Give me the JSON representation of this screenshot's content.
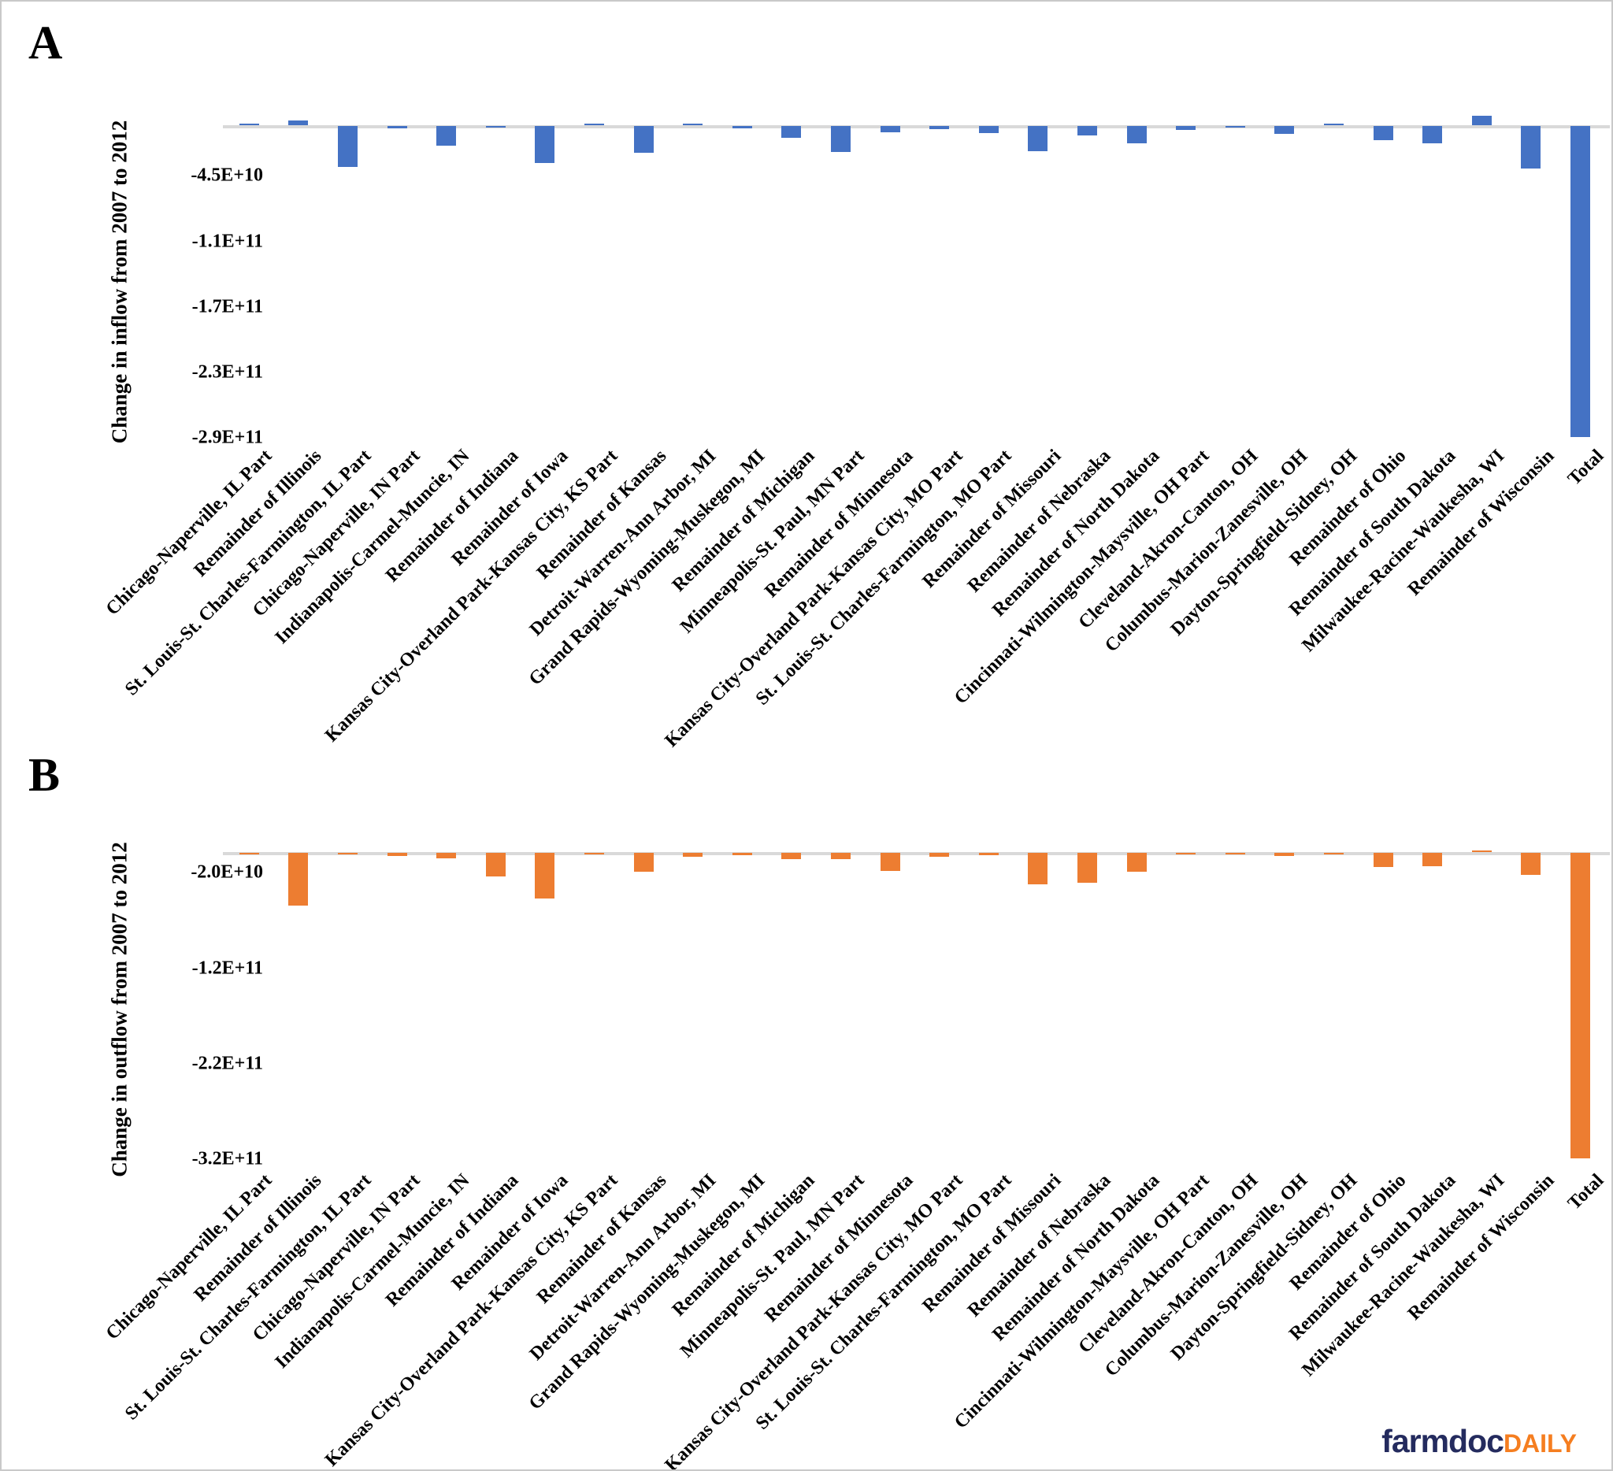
{
  "figure": {
    "background": "#ffffff",
    "border_color": "#c9c9c9"
  },
  "footer": {
    "brand": "farmdoc",
    "brand_suffix": "DAILY",
    "brand_color": "#242b5e",
    "brand_suffix_color": "#f57e20"
  },
  "colors": {
    "panel_a_bar": "#4472c4",
    "panel_b_bar": "#ed7d31",
    "axis_line": "#d9d9d9",
    "text": "#000000"
  },
  "chart_data": [
    {
      "panel_letter": "A",
      "type": "bar",
      "title": "",
      "xlabel": "",
      "ylabel": "Change in inflow from 2007 to 2012",
      "bar_color": "#4472c4",
      "grid": false,
      "legend": false,
      "ylim": [
        -300000000000.0,
        15000000000.0
      ],
      "yticks": [
        {
          "label": "-4.5E+10",
          "value": -45000000000.0
        },
        {
          "label": "-1.1E+11",
          "value": -105000000000.0
        },
        {
          "label": "-1.7E+11",
          "value": -165000000000.0
        },
        {
          "label": "-2.3E+11",
          "value": -225000000000.0
        },
        {
          "label": "-2.9E+11",
          "value": -285000000000.0
        }
      ],
      "categories": [
        "Chicago-Naperville, IL Part",
        "Remainder of Illinois",
        "St. Louis-St. Charles-Farmington, IL Part",
        "Chicago-Naperville, IN Part",
        "Indianapolis-Carmel-Muncie, IN",
        "Remainder of Indiana",
        "Remainder of Iowa",
        "Kansas City-Overland Park-Kansas City, KS Part",
        "Remainder of Kansas",
        "Detroit-Warren-Ann Arbor, MI",
        "Grand Rapids-Wyoming-Muskegon, MI",
        "Remainder of Michigan",
        "Minneapolis-St. Paul, MN Part",
        "Remainder of Minnesota",
        "Kansas City-Overland Park-Kansas City, MO Part",
        "St. Louis-St. Charles-Farmington, MO Part",
        "Remainder of Missouri",
        "Remainder of Nebraska",
        "Remainder of North Dakota",
        "Cincinnati-Wilmington-Maysville, OH Part",
        "Cleveland-Akron-Canton, OH",
        "Columbus-Marion-Zanesville, OH",
        "Dayton-Springfield-Sidney, OH",
        "Remainder of Ohio",
        "Remainder of South Dakota",
        "Milwaukee-Racine-Waukesha, WI",
        "Remainder of Wisconsin",
        "Total"
      ],
      "values": [
        1200000000.0,
        4200000000.0,
        -37600000000.0,
        -2000000000.0,
        -18000000000.0,
        -1000000000.0,
        -34000000000.0,
        500000000.0,
        -24600000000.0,
        1700000000.0,
        -2000000000.0,
        -11000000000.0,
        -24000000000.0,
        -5700000000.0,
        -2700000000.0,
        -6600000000.0,
        -23000000000.0,
        -8600000000.0,
        -16000000000.0,
        -3700000000.0,
        -1100000000.0,
        -7400000000.0,
        1500000000.0,
        -13300000000.0,
        -16000000000.0,
        8600000000.0,
        -38600000000.0,
        -285000000000.0
      ]
    },
    {
      "panel_letter": "B",
      "type": "bar",
      "title": "",
      "xlabel": "",
      "ylabel": "Change in outflow from 2007 to 2012",
      "bar_color": "#ed7d31",
      "grid": false,
      "legend": false,
      "ylim": [
        -335000000000.0,
        15000000000.0
      ],
      "yticks": [
        {
          "label": "-2.0E+10",
          "value": -20000000000.0
        },
        {
          "label": "-1.2E+11",
          "value": -120000000000.0
        },
        {
          "label": "-2.2E+11",
          "value": -220000000000.0
        },
        {
          "label": "-3.2E+11",
          "value": -320000000000.0
        }
      ],
      "categories": [
        "Chicago-Naperville, IL Part",
        "Remainder of Illinois",
        "St. Louis-St. Charles-Farmington, IL Part",
        "Chicago-Naperville, IN Part",
        "Indianapolis-Carmel-Muncie, IN",
        "Remainder of Indiana",
        "Remainder of Iowa",
        "Kansas City-Overland Park-Kansas City, KS Part",
        "Remainder of Kansas",
        "Detroit-Warren-Ann Arbor, MI",
        "Grand Rapids-Wyoming-Muskegon, MI",
        "Remainder of Michigan",
        "Minneapolis-St. Paul, MN Part",
        "Remainder of Minnesota",
        "Kansas City-Overland Park-Kansas City, MO Part",
        "St. Louis-St. Charles-Farmington, MO Part",
        "Remainder of Missouri",
        "Remainder of Nebraska",
        "Remainder of North Dakota",
        "Cincinnati-Wilmington-Maysville, OH Part",
        "Cleveland-Akron-Canton, OH",
        "Columbus-Marion-Zanesville, OH",
        "Dayton-Springfield-Sidney, OH",
        "Remainder of Ohio",
        "Remainder of South Dakota",
        "Milwaukee-Racine-Waukesha, WI",
        "Remainder of Wisconsin",
        "Total"
      ],
      "values": [
        -1500000000.0,
        -55000000000.0,
        -2000000000.0,
        -3500000000.0,
        -6000000000.0,
        -25000000000.0,
        -48000000000.0,
        -400000000.0,
        -20000000000.0,
        -4500000000.0,
        -2200000000.0,
        -6200000000.0,
        -6200000000.0,
        -19000000000.0,
        -4200000000.0,
        -2200000000.0,
        -33000000000.0,
        -31000000000.0,
        -19500000000.0,
        -1500000000.0,
        -800000000.0,
        -3600000000.0,
        -1000000000.0,
        -15000000000.0,
        -14000000000.0,
        1200000000.0,
        -23000000000.0,
        -320000000000.0
      ]
    }
  ]
}
